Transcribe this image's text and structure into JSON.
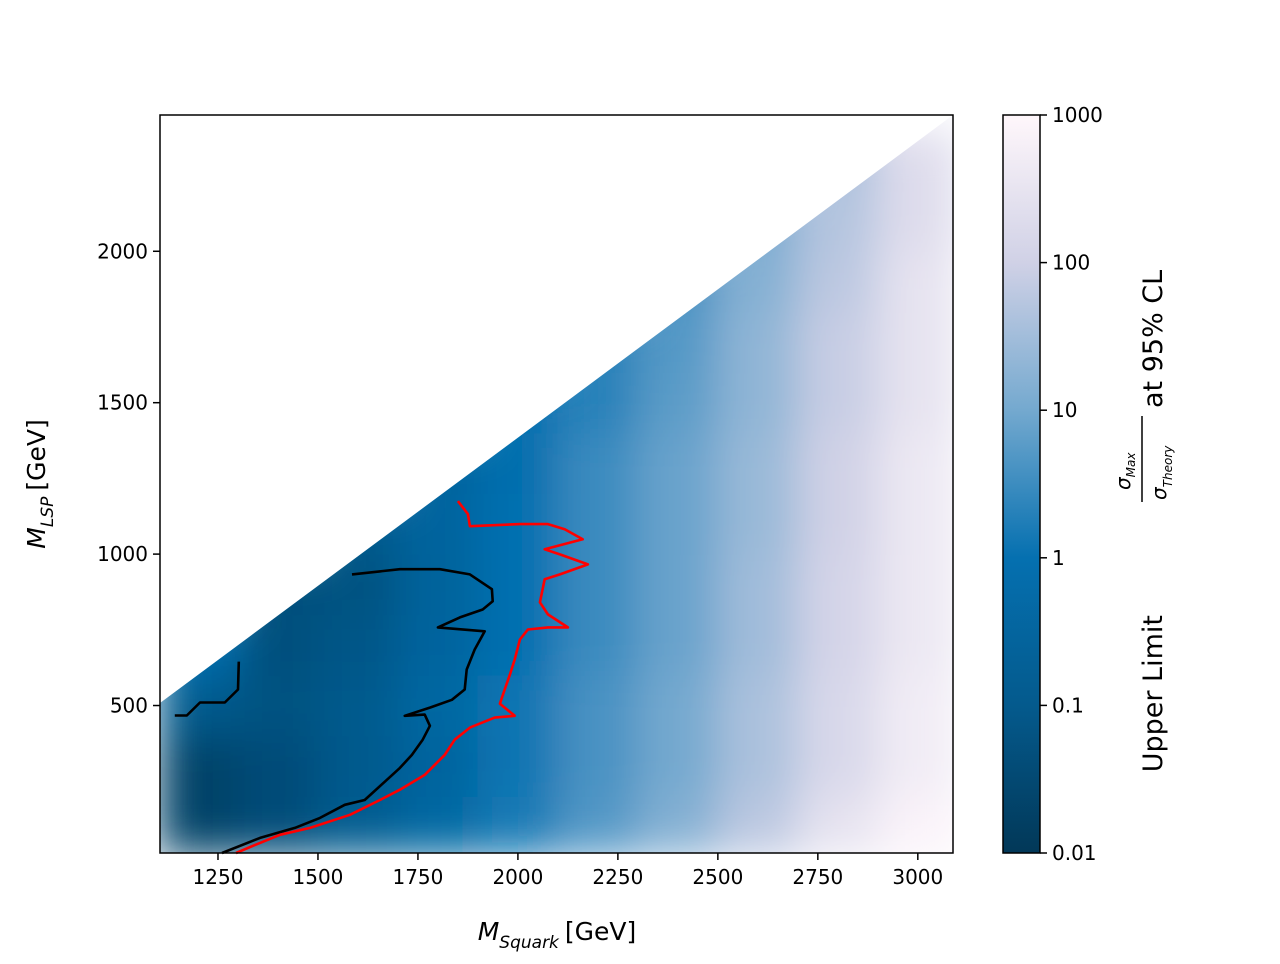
{
  "chart_data": {
    "type": "heatmap",
    "xlabel": {
      "main": "M",
      "sub": "Squark",
      "unit": "[GeV]"
    },
    "ylabel": {
      "main": "M",
      "sub": "LSP",
      "unit": "[GeV]"
    },
    "colorbar_label": {
      "prefix": "Upper Limit",
      "numerator": "σ",
      "numerator_sub": "Max",
      "denominator": "σ",
      "denominator_sub": "Theory",
      "suffix": "at 95% CL"
    },
    "xlim": [
      1105,
      3088
    ],
    "ylim": [
      13,
      2450
    ],
    "xticks": [
      1250,
      1500,
      1750,
      2000,
      2250,
      2500,
      2750,
      3000
    ],
    "yticks": [
      500,
      1000,
      1500,
      2000
    ],
    "zlim": [
      0.01,
      1000
    ],
    "zticks": [
      0.01,
      0.1,
      1,
      10,
      100,
      1000
    ],
    "zscale": "log",
    "colormap": [
      "#023858",
      "#045a8d",
      "#0570b0",
      "#74a9cf",
      "#d0d1e6",
      "#fff7fb"
    ],
    "x": [
      1200,
      1400,
      1600,
      1800,
      2000,
      2200,
      2400,
      2600,
      2800,
      3000
    ],
    "y": [
      100,
      300,
      500,
      700,
      900,
      1100,
      1300,
      1500,
      1700,
      1900,
      2100,
      2300
    ],
    "z": [
      [
        0.02,
        0.04,
        0.12,
        0.4,
        1.5,
        5,
        15,
        60,
        300,
        800
      ],
      [
        0.02,
        0.04,
        0.1,
        0.3,
        1.2,
        4,
        10,
        40,
        150,
        500
      ],
      [
        0.1,
        0.06,
        0.1,
        0.4,
        1.2,
        4,
        10,
        40,
        150,
        500
      ],
      [
        1,
        0.05,
        0.08,
        0.3,
        1,
        3,
        8,
        30,
        120,
        400
      ],
      [
        null,
        0.05,
        0.06,
        0.25,
        1,
        3,
        8,
        30,
        120,
        400
      ],
      [
        null,
        null,
        0.1,
        0.3,
        1,
        3,
        8,
        25,
        100,
        400
      ],
      [
        null,
        null,
        null,
        0.3,
        0.8,
        3,
        8,
        25,
        100,
        400
      ],
      [
        null,
        null,
        null,
        null,
        1,
        2,
        6,
        20,
        80,
        300
      ],
      [
        null,
        null,
        null,
        null,
        null,
        2,
        5,
        20,
        80,
        300
      ],
      [
        null,
        null,
        null,
        null,
        null,
        null,
        4,
        15,
        60,
        300
      ],
      [
        null,
        null,
        null,
        null,
        null,
        null,
        null,
        12,
        50,
        200
      ],
      [
        null,
        null,
        null,
        null,
        null,
        null,
        null,
        null,
        40,
        200
      ]
    ],
    "series": [
      {
        "color": "#000000",
        "x": [
          1260,
          1355,
          1442,
          1505,
          1567,
          1617,
          1667,
          1705,
          1735,
          1762,
          1780,
          1767,
          1717,
          1780,
          1835,
          1867,
          1872,
          1892,
          1917,
          1800,
          1855,
          1912,
          1937,
          1935,
          1880,
          1805,
          1705,
          1585,
          null,
          1142,
          1172,
          1205,
          1267,
          1300,
          1302
        ],
        "y": [
          13,
          63,
          96,
          129,
          172,
          188,
          248,
          294,
          337,
          387,
          433,
          470,
          466,
          493,
          519,
          553,
          619,
          685,
          745,
          758,
          791,
          817,
          844,
          884,
          933,
          950,
          950,
          933,
          null,
          467,
          467,
          510,
          510,
          553,
          645
        ]
      },
      {
        "color": "#ff0000",
        "x": [
          1295,
          1342,
          1405,
          1480,
          1580,
          1655,
          1705,
          1767,
          1817,
          1842,
          1880,
          1942,
          1992,
          1955,
          1967,
          1980,
          1992,
          2005,
          2025,
          2075,
          2125,
          2075,
          2055,
          2067,
          2105,
          2175,
          2105,
          2067,
          2162,
          2117,
          2075,
          2005,
          1880,
          1875,
          1850
        ],
        "y": [
          13,
          39,
          73,
          96,
          139,
          188,
          222,
          271,
          337,
          387,
          427,
          460,
          466,
          506,
          553,
          602,
          652,
          718,
          751,
          758,
          758,
          801,
          841,
          917,
          933,
          966,
          999,
          1016,
          1049,
          1082,
          1099,
          1099,
          1092,
          1132,
          1175
        ]
      }
    ]
  }
}
